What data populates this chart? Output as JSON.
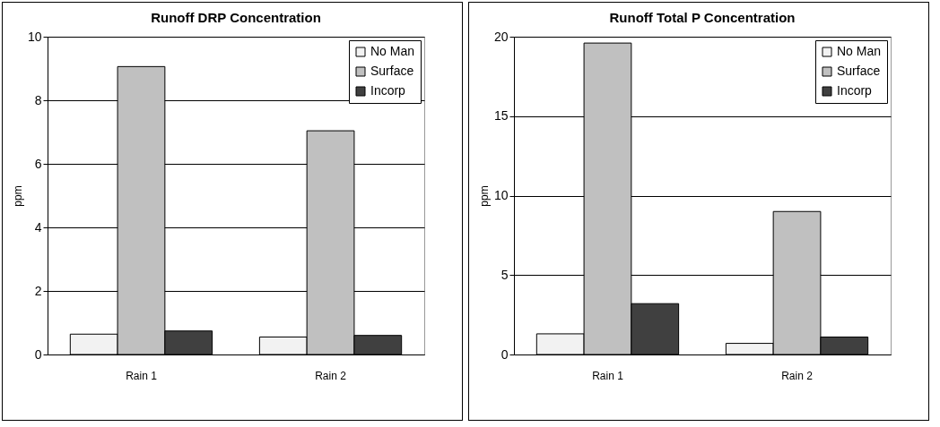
{
  "chart_data": [
    {
      "type": "bar",
      "title": "Runoff DRP Concentration",
      "ylabel": "ppm",
      "categories": [
        "Rain 1",
        "Rain 2"
      ],
      "ylim": [
        0,
        10
      ],
      "yticks": [
        0,
        2,
        4,
        6,
        8,
        10
      ],
      "grid": "y",
      "legend": "top right",
      "series": [
        {
          "name": "No Man",
          "color": "#f2f2f2",
          "values": [
            0.64,
            0.55
          ]
        },
        {
          "name": "Surface",
          "color": "#c0c0c0",
          "values": [
            9.06,
            7.04
          ]
        },
        {
          "name": "Incorp",
          "color": "#404040",
          "values": [
            0.74,
            0.6
          ]
        }
      ]
    },
    {
      "type": "bar",
      "title": "Runoff Total P Concentration",
      "ylabel": "ppm",
      "categories": [
        "Rain 1",
        "Rain 2"
      ],
      "ylim": [
        0,
        20
      ],
      "yticks": [
        0,
        5,
        10,
        15,
        20
      ],
      "grid": "y",
      "legend": "top right",
      "series": [
        {
          "name": "No Man",
          "color": "#f2f2f2",
          "values": [
            1.3,
            0.7
          ]
        },
        {
          "name": "Surface",
          "color": "#c0c0c0",
          "values": [
            19.6,
            9.0
          ]
        },
        {
          "name": "Incorp",
          "color": "#404040",
          "values": [
            3.2,
            1.1
          ]
        }
      ]
    }
  ]
}
